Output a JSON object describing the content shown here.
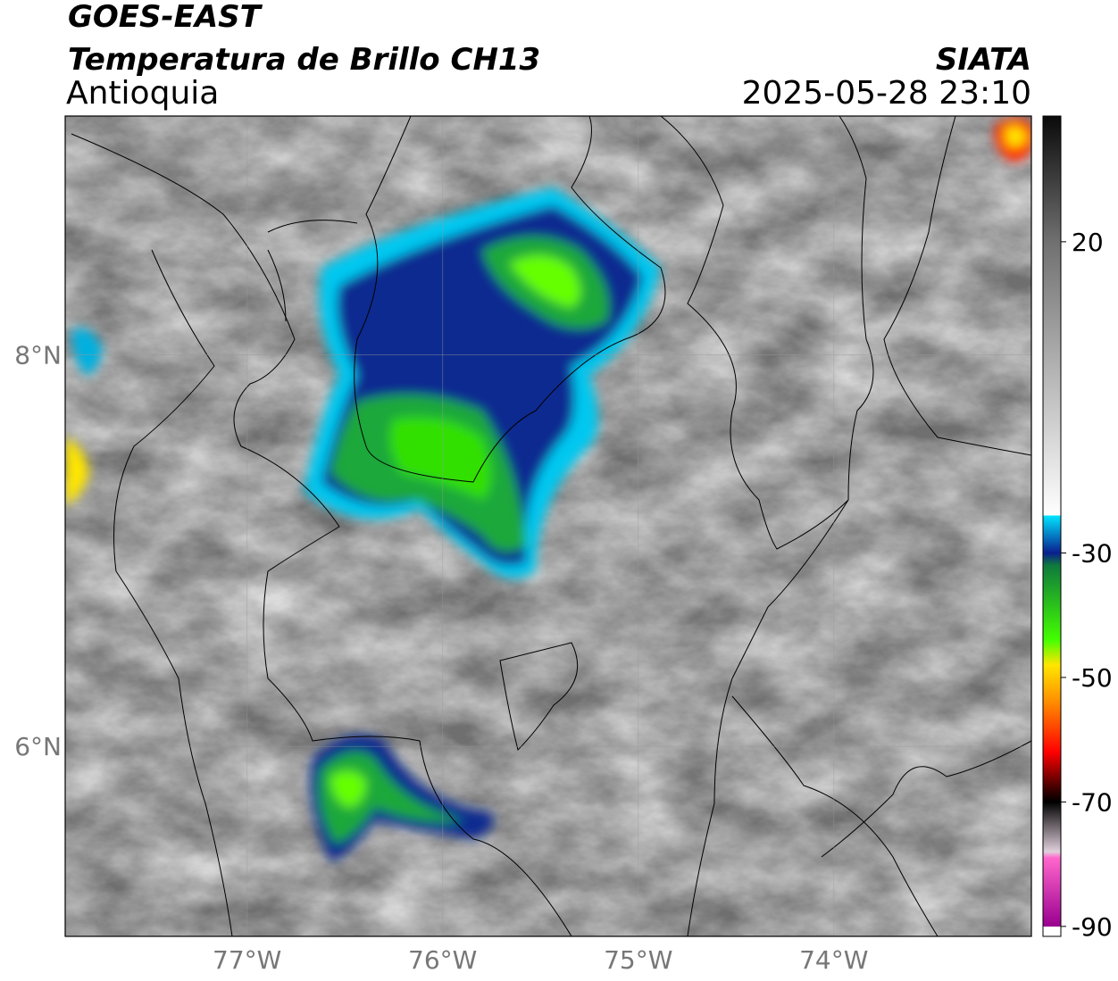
{
  "chart_data": {
    "type": "map",
    "title": "GOES-EAST",
    "subtitle": "Temperatura de Brillo CH13",
    "region": "Antioquia",
    "source": "SIATA",
    "timestamp": "2025-05-28 23:10",
    "xlim": [
      -77.93,
      -72.99
    ],
    "ylim": [
      5.03,
      9.22
    ],
    "xticks": [
      {
        "value": -77,
        "label": "77°W"
      },
      {
        "value": -76,
        "label": "76°W"
      },
      {
        "value": -75,
        "label": "75°W"
      },
      {
        "value": -74,
        "label": "74°W"
      }
    ],
    "yticks": [
      {
        "value": 8,
        "label": "8°N"
      },
      {
        "value": 6,
        "label": "6°N"
      }
    ],
    "grid": true,
    "colorbar": {
      "lim": [
        -91.6,
        40.2
      ],
      "ticks": [
        20,
        -30,
        -50,
        -70,
        -90
      ],
      "stops": [
        [
          40.2,
          "#0a0a0a"
        ],
        [
          20,
          "#707070"
        ],
        [
          -24,
          "#ffffff"
        ],
        [
          -24,
          "#00e5ff"
        ],
        [
          -30,
          "#0a1f8f"
        ],
        [
          -32,
          "#0f7a3c"
        ],
        [
          -44,
          "#44ff00"
        ],
        [
          -48,
          "#ffe600"
        ],
        [
          -54,
          "#ff8c00"
        ],
        [
          -62,
          "#ff0000"
        ],
        [
          -68,
          "#3a0000"
        ],
        [
          -70,
          "#000000"
        ],
        [
          -78,
          "#e0d0dc"
        ],
        [
          -79,
          "#ff66cc"
        ],
        [
          -90,
          "#99008f"
        ],
        [
          -90,
          "#ffffff"
        ],
        [
          -91.6,
          "#ffffff"
        ]
      ]
    }
  }
}
